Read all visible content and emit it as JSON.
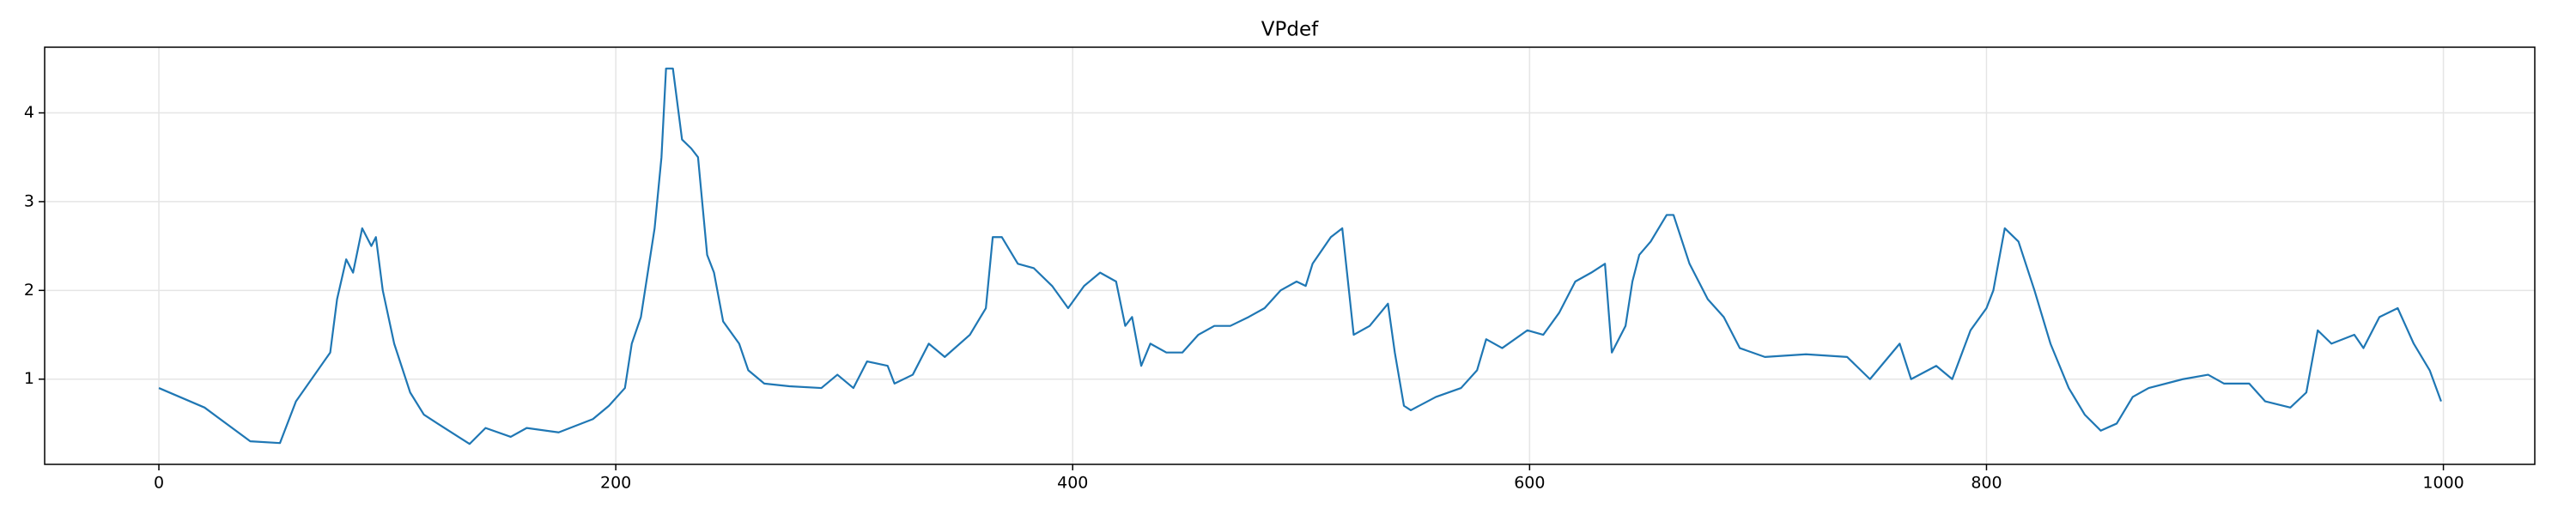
{
  "chart_data": {
    "type": "line",
    "title": "VPdef",
    "series": [
      {
        "name": "VPdef",
        "color": "#1f77b4",
        "x": [
          0,
          20,
          40,
          53,
          60,
          75,
          78,
          82,
          85,
          89,
          93,
          95,
          98,
          103,
          110,
          116,
          125,
          136,
          143,
          154,
          161,
          175,
          190,
          197,
          204,
          207,
          211,
          217,
          220,
          222,
          225,
          229,
          233,
          236,
          240,
          243,
          247,
          254,
          258,
          265,
          276,
          290,
          297,
          304,
          310,
          319,
          322,
          330,
          337,
          344,
          355,
          362,
          365,
          369,
          376,
          383,
          391,
          398,
          405,
          412,
          419,
          423,
          426,
          430,
          434,
          441,
          448,
          455,
          462,
          469,
          477,
          484,
          491,
          498,
          502,
          505,
          513,
          518,
          523,
          530,
          538,
          541,
          545,
          548,
          559,
          570,
          577,
          581,
          588,
          599,
          606,
          613,
          620,
          627,
          633,
          636,
          642,
          645,
          648,
          653,
          660,
          663,
          670,
          678,
          685,
          692,
          703,
          721,
          739,
          749,
          762,
          767,
          778,
          785,
          793,
          800,
          803,
          808,
          814,
          821,
          828,
          836,
          843,
          850,
          857,
          864,
          871,
          886,
          897,
          904,
          915,
          922,
          933,
          940,
          945,
          951,
          961,
          965,
          972,
          980,
          987,
          994,
          999
        ],
        "values": [
          0.9,
          0.68,
          0.3,
          0.28,
          0.75,
          1.3,
          1.9,
          2.35,
          2.2,
          2.7,
          2.5,
          2.6,
          2.0,
          1.4,
          0.85,
          0.6,
          0.45,
          0.27,
          0.45,
          0.35,
          0.45,
          0.4,
          0.55,
          0.7,
          0.9,
          1.4,
          1.7,
          2.7,
          3.5,
          4.5,
          4.5,
          3.7,
          3.6,
          3.5,
          2.4,
          2.2,
          1.65,
          1.4,
          1.1,
          0.95,
          0.92,
          0.9,
          1.05,
          0.9,
          1.2,
          1.15,
          0.95,
          1.05,
          1.4,
          1.25,
          1.5,
          1.8,
          2.6,
          2.6,
          2.3,
          2.25,
          2.05,
          1.8,
          2.05,
          2.2,
          2.1,
          1.6,
          1.7,
          1.15,
          1.4,
          1.3,
          1.3,
          1.5,
          1.6,
          1.6,
          1.7,
          1.8,
          2.0,
          2.1,
          2.05,
          2.3,
          2.6,
          2.7,
          1.5,
          1.6,
          1.85,
          1.3,
          0.7,
          0.65,
          0.8,
          0.9,
          1.1,
          1.45,
          1.35,
          1.55,
          1.5,
          1.75,
          2.1,
          2.2,
          2.3,
          1.3,
          1.6,
          2.1,
          2.4,
          2.55,
          2.85,
          2.85,
          2.3,
          1.9,
          1.7,
          1.35,
          1.25,
          1.28,
          1.25,
          1.0,
          1.4,
          1.0,
          1.15,
          1.0,
          1.55,
          1.8,
          2.0,
          2.7,
          2.55,
          2.0,
          1.4,
          0.9,
          0.6,
          0.42,
          0.5,
          0.8,
          0.9,
          1.0,
          1.05,
          0.95,
          0.95,
          0.75,
          0.68,
          0.85,
          1.55,
          1.4,
          1.5,
          1.35,
          1.7,
          1.8,
          1.4,
          1.1,
          0.75
        ]
      }
    ],
    "xlim": [
      -50,
      1040
    ],
    "xticks": [
      0,
      200,
      400,
      600,
      800,
      1000
    ],
    "ylim": [
      0.04,
      4.74
    ],
    "yticks": [
      1,
      2,
      3,
      4
    ],
    "grid": true
  }
}
